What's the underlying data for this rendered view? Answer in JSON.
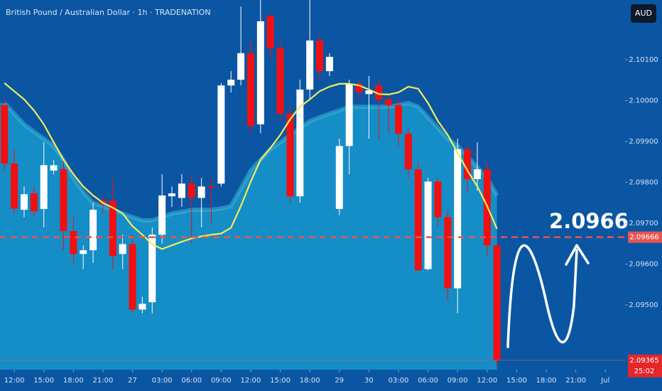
{
  "chart_data": {
    "type": "candlestick",
    "title": "British Pound / Australian Dollar · 1h · TRADENATION",
    "currency": "AUD",
    "x": [
      -1,
      0,
      1,
      2,
      3,
      4,
      5,
      6,
      7,
      8,
      9,
      10,
      11,
      12,
      13,
      14,
      15,
      16,
      17,
      18,
      19,
      20,
      21,
      22,
      23,
      24,
      25,
      26,
      27,
      28,
      29,
      30,
      31,
      32,
      33,
      34,
      35,
      36,
      37,
      38,
      39,
      40,
      41,
      42,
      43,
      44,
      45,
      46,
      47,
      48,
      49
    ],
    "open": [
      2.09989,
      2.09846,
      2.09733,
      2.09773,
      2.09735,
      2.09829,
      2.09832,
      2.09681,
      2.09625,
      2.09634,
      2.09755,
      2.09755,
      2.09625,
      2.09649,
      2.09489,
      2.09507,
      2.09672,
      2.09766,
      2.09762,
      2.09797,
      2.09762,
      2.0979,
      2.09797,
      2.10037,
      2.10051,
      2.10116,
      2.09942,
      2.10208,
      2.10128,
      2.09968,
      2.09766,
      2.10027,
      2.10147,
      2.10072,
      2.09735,
      2.09889,
      2.10041,
      2.10016,
      2.10037,
      2.10003,
      2.09989,
      2.09919,
      2.09832,
      2.09588,
      2.09802,
      2.09715,
      2.09541,
      2.09881,
      2.09808,
      2.09832,
      2.09646
    ],
    "high": [
      2.10003,
      2.09881,
      2.0979,
      2.0979,
      2.09898,
      2.09855,
      2.09855,
      2.09715,
      2.09646,
      2.0975,
      2.09766,
      2.09811,
      2.09672,
      2.09672,
      2.0952,
      2.0969,
      2.0982,
      2.0979,
      2.0982,
      2.0982,
      2.09811,
      2.09811,
      2.10043,
      2.10072,
      2.1023,
      2.10147,
      2.10246,
      2.10208,
      2.10147,
      2.09989,
      2.10051,
      2.10246,
      2.10165,
      2.10116,
      2.09907,
      2.10051,
      2.10051,
      2.1006,
      2.10051,
      2.10016,
      2.10003,
      2.09933,
      2.0985,
      2.09811,
      2.09811,
      2.09733,
      2.09907,
      2.09889,
      2.09898,
      2.0985,
      2.0965
    ],
    "low": [
      2.09829,
      2.09724,
      2.09715,
      2.09715,
      2.0969,
      2.0982,
      2.09634,
      2.09603,
      2.09588,
      2.09603,
      2.09724,
      2.09585,
      2.09588,
      2.0948,
      2.0948,
      2.0948,
      2.0965,
      2.0974,
      2.0974,
      2.0965,
      2.0969,
      2.097,
      2.0979,
      2.1002,
      2.10037,
      2.0992,
      2.0992,
      2.101,
      2.0995,
      2.0975,
      2.0975,
      2.10003,
      2.10051,
      2.1006,
      2.0972,
      2.0982,
      2.10003,
      2.09907,
      2.09907,
      2.0992,
      2.0989,
      2.09811,
      2.09585,
      2.09585,
      2.0969,
      2.0951,
      2.0948,
      2.09776,
      2.0978,
      2.0962,
      2.0935
    ],
    "close": [
      2.09846,
      2.09736,
      2.09771,
      2.09729,
      2.09842,
      2.09842,
      2.09681,
      2.09625,
      2.09634,
      2.09733,
      2.09747,
      2.0962,
      2.09649,
      2.09489,
      2.09503,
      2.09672,
      2.09768,
      2.09773,
      2.09797,
      2.09762,
      2.0979,
      2.09787,
      2.10037,
      2.10051,
      2.10116,
      2.09938,
      2.10194,
      2.10128,
      2.09968,
      2.09766,
      2.10027,
      2.10147,
      2.10072,
      2.10107,
      2.09889,
      2.10041,
      2.1002,
      2.10025,
      2.10003,
      2.09989,
      2.09919,
      2.09832,
      2.09585,
      2.09802,
      2.09715,
      2.09541,
      2.09881,
      2.09808,
      2.09832,
      2.09646,
      2.09365
    ],
    "up_color": "#ffffff",
    "down_color": "#f20f12",
    "overlays": [
      {
        "type": "area",
        "color": "#1896cc",
        "values": [
          2.09994,
          2.09968,
          2.09942,
          2.09924,
          2.09907,
          2.09889,
          2.09855,
          2.09811,
          2.09776,
          2.0975,
          2.09742,
          2.09733,
          2.09724,
          2.09715,
          2.09707,
          2.09707,
          2.09715,
          2.09724,
          2.09728,
          2.09733,
          2.09733,
          2.09733,
          2.09736,
          2.09742,
          2.09785,
          2.09829,
          2.09855,
          2.09881,
          2.09898,
          2.09916,
          2.09933,
          2.0995,
          2.09959,
          2.09968,
          2.09976,
          2.09985,
          2.09985,
          2.09985,
          2.09985,
          2.09985,
          2.09989,
          2.09994,
          2.09985,
          2.09959,
          2.09933,
          2.09907,
          2.09889,
          2.09863,
          2.09837,
          2.09811,
          2.09768
        ]
      },
      {
        "type": "line",
        "color": "#f4ec5a",
        "values": [
          2.10043,
          2.10023,
          2.10003,
          2.09976,
          2.09942,
          2.09898,
          2.09855,
          2.0982,
          2.0979,
          2.09768,
          2.0975,
          2.09738,
          2.09724,
          2.09693,
          2.09672,
          2.09649,
          2.09637,
          2.09646,
          2.09655,
          2.09663,
          2.09668,
          2.09672,
          2.09675,
          2.09689,
          2.09742,
          2.09802,
          2.09855,
          2.09884,
          2.09916,
          2.09954,
          2.09985,
          2.10003,
          2.10023,
          2.10034,
          2.10041,
          2.10041,
          2.10037,
          2.10027,
          2.10016,
          2.10015,
          2.1002,
          2.10034,
          2.10029,
          2.09994,
          2.0995,
          2.09916,
          2.09872,
          2.09829,
          2.0979,
          2.09742,
          2.09686
        ]
      }
    ],
    "ylim": [
      2.09342,
      2.10246
    ],
    "yticks": [
      {
        "value": 2.101,
        "label": "2.10100"
      },
      {
        "value": 2.1,
        "label": "2.10000"
      },
      {
        "value": 2.099,
        "label": "2.09900"
      },
      {
        "value": 2.098,
        "label": "2.09800"
      },
      {
        "value": 2.097,
        "label": "2.09700"
      },
      {
        "value": 2.096,
        "label": "2.09600"
      },
      {
        "value": 2.095,
        "label": "2.09500"
      }
    ],
    "xlim": [
      -1.45,
      62
    ],
    "xticks": [
      {
        "value": 0,
        "label": "12:00"
      },
      {
        "value": 3,
        "label": "15:00"
      },
      {
        "value": 6,
        "label": "18:00"
      },
      {
        "value": 9,
        "label": "21:00"
      },
      {
        "value": 12,
        "label": "27"
      },
      {
        "value": 15,
        "label": "03:00"
      },
      {
        "value": 18,
        "label": "06:00"
      },
      {
        "value": 21,
        "label": "09:00"
      },
      {
        "value": 24,
        "label": "12:00"
      },
      {
        "value": 27,
        "label": "15:00"
      },
      {
        "value": 30,
        "label": "18:00"
      },
      {
        "value": 33,
        "label": "29"
      },
      {
        "value": 36,
        "label": "30"
      },
      {
        "value": 39,
        "label": "03:00"
      },
      {
        "value": 42,
        "label": "06:00"
      },
      {
        "value": 45,
        "label": "09:00"
      },
      {
        "value": 48,
        "label": "12:00"
      },
      {
        "value": 51,
        "label": "15:00"
      },
      {
        "value": 54,
        "label": "18:00"
      },
      {
        "value": 57,
        "label": "21:00"
      },
      {
        "value": 60,
        "label": "Jul"
      }
    ],
    "price_line": {
      "value": 2.09666,
      "label": "2.09666",
      "color": "#e4554f"
    },
    "last_price": {
      "value": 2.09365,
      "label": "2.09365"
    },
    "countdown": "25:02",
    "annotation": "2.0966"
  }
}
